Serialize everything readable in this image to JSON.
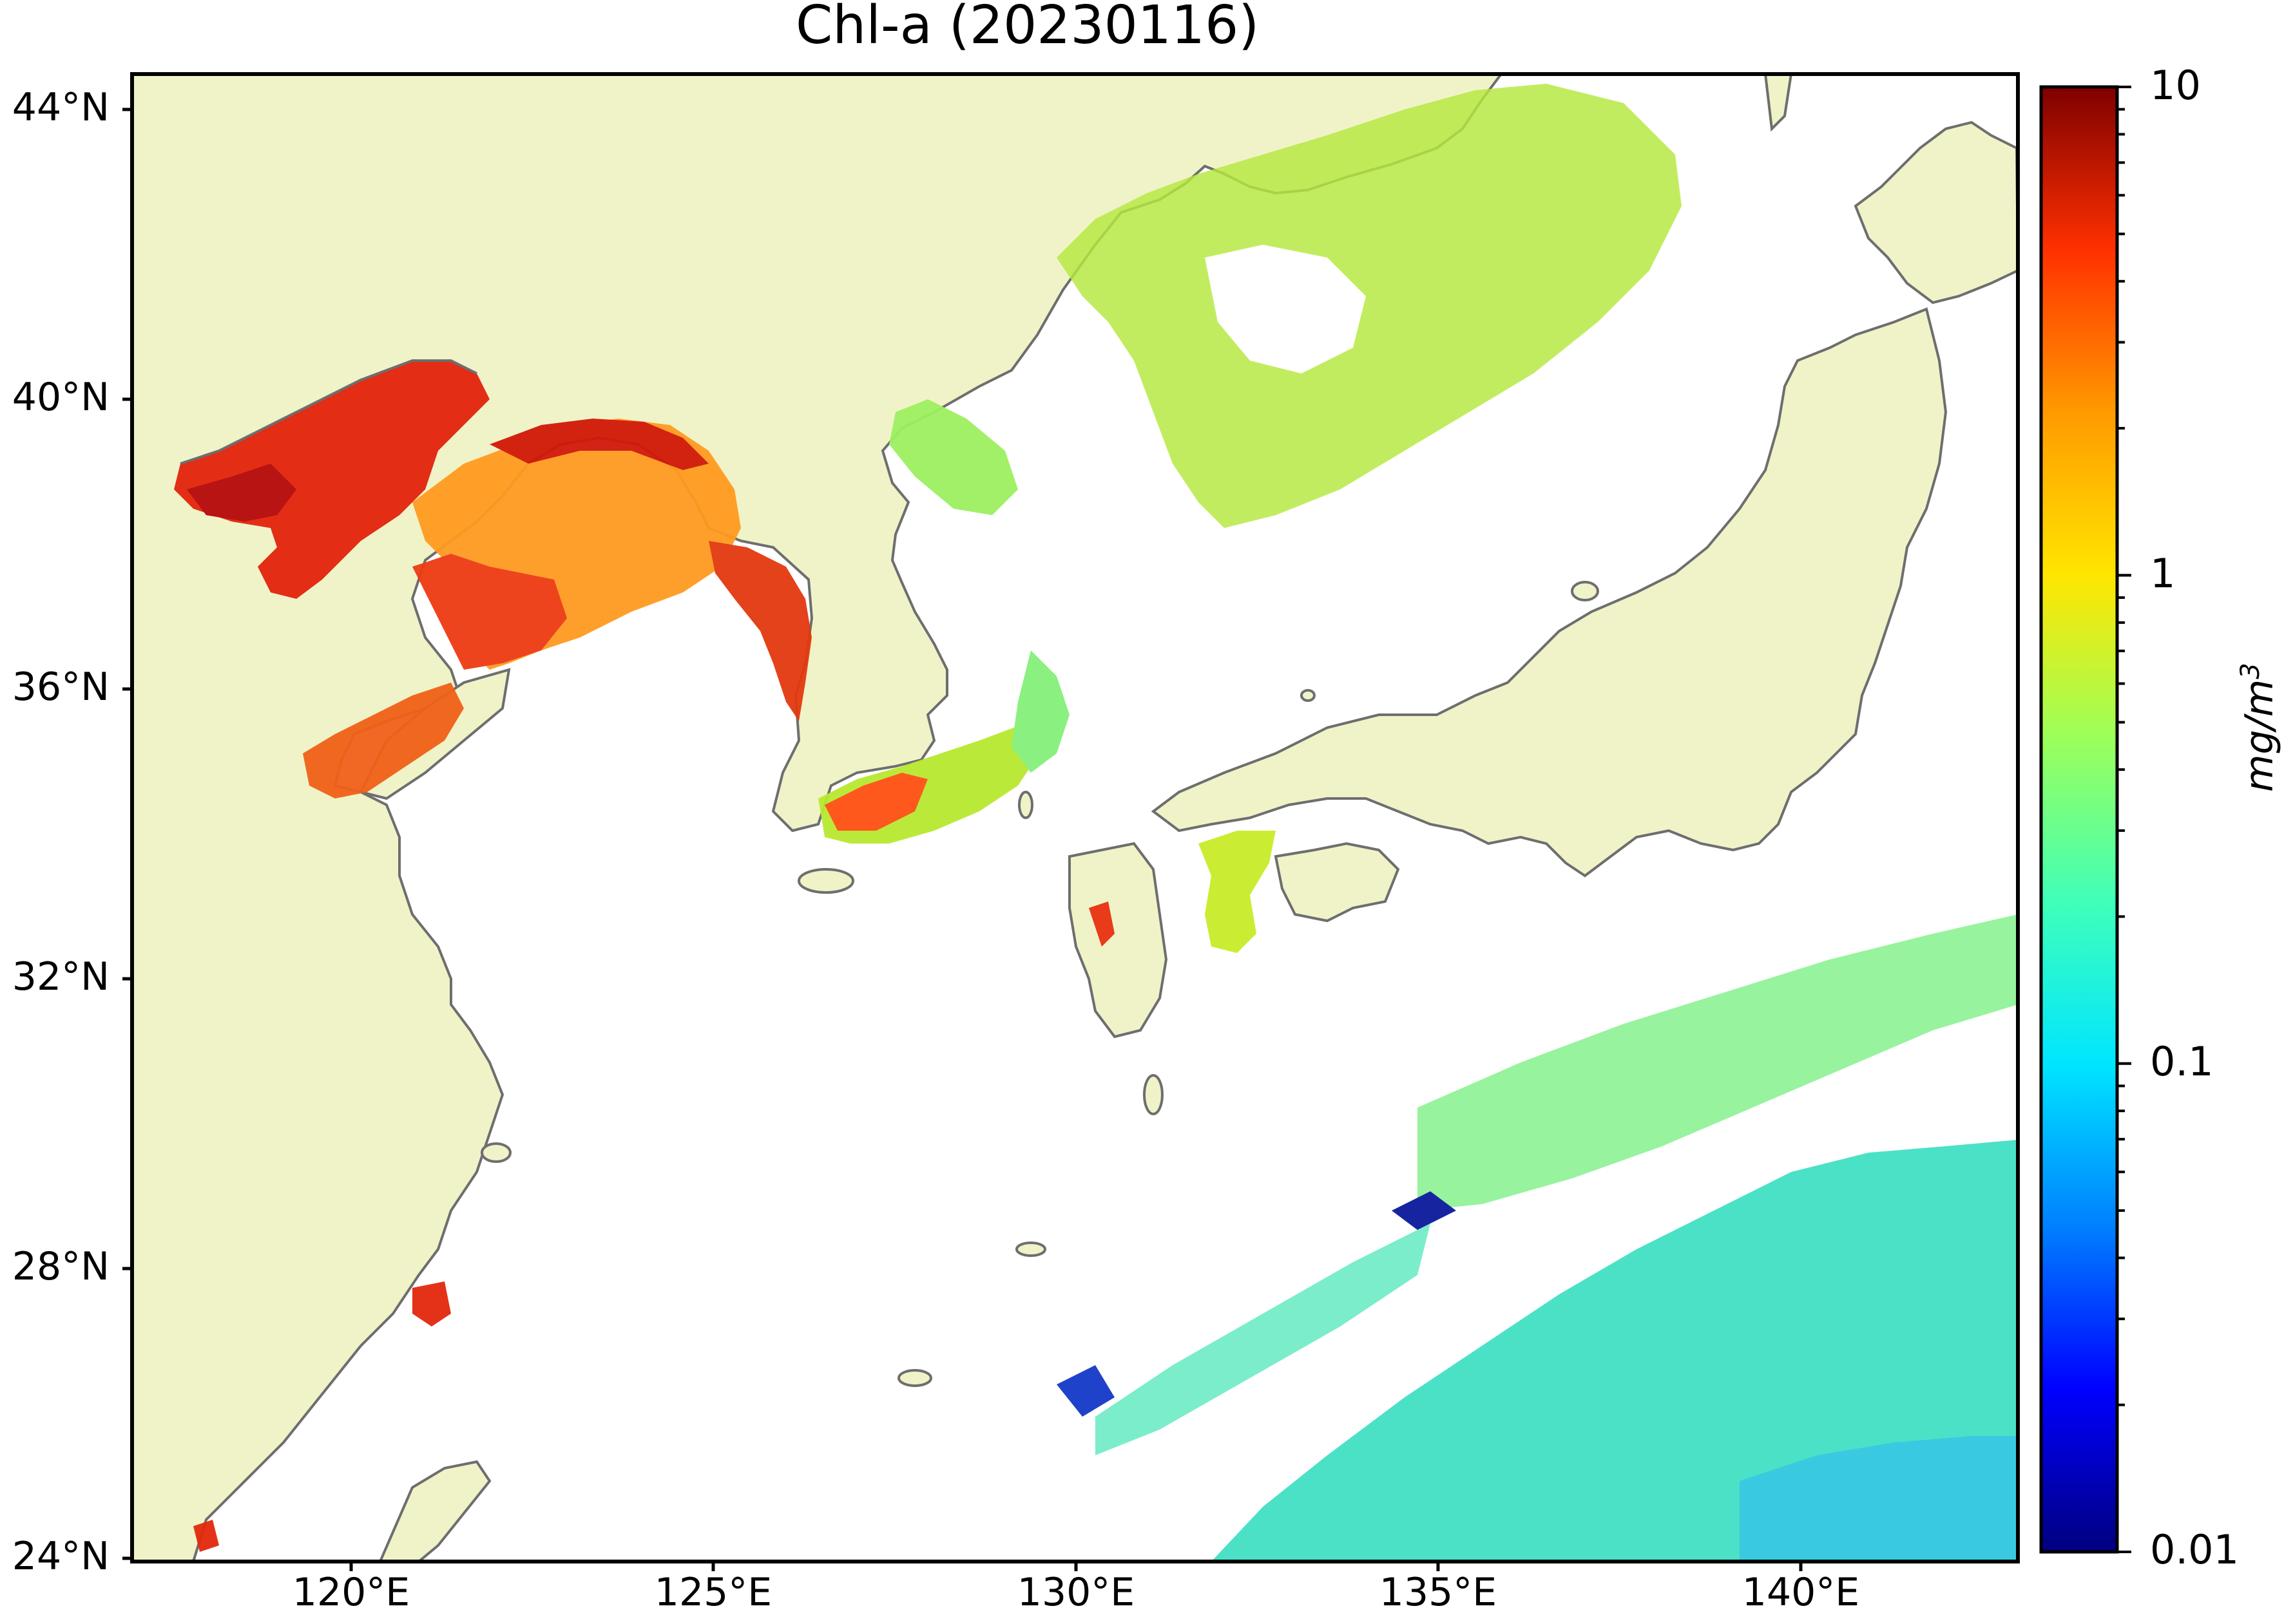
{
  "title": "Chl-a (20230116)",
  "latitude_ticks": [
    "44°N",
    "40°N",
    "36°N",
    "32°N",
    "28°N",
    "24°N"
  ],
  "longitude_ticks": [
    "120°E",
    "125°E",
    "130°E",
    "135°E",
    "140°E"
  ],
  "colorbar": {
    "scale": "log",
    "min": 0.01,
    "max": 10,
    "tick_labels": [
      "10",
      "1",
      "0.1",
      "0.01"
    ],
    "unit_base": "mg/m",
    "unit_exponent": "3",
    "colormap": [
      "#00007f",
      "#0000ff",
      "#0080ff",
      "#00e6ff",
      "#40ffb8",
      "#9cff5a",
      "#ffe600",
      "#ff9a00",
      "#ff3000",
      "#7f0000"
    ]
  },
  "map": {
    "land_color": "#f0f3c8",
    "ocean_color": "#ffffff",
    "coastline_color": "#6e6e6e",
    "frame_color": "#000000",
    "lon_range": [
      117,
      143
    ],
    "lat_range": [
      24,
      44.5
    ]
  }
}
